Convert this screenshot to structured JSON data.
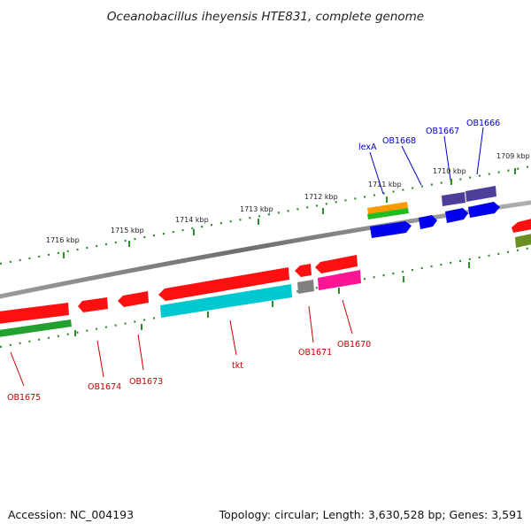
{
  "title": "Oceanobacillus iheyensis HTE831, complete genome",
  "footer": {
    "accession": "Accession: NC_004193",
    "summary": "Topology: circular; Length: 3,630,528 bp; Genes: 3,591"
  },
  "ruler": [
    {
      "label": "1716 kbp"
    },
    {
      "label": "1715 kbp"
    },
    {
      "label": "1714 kbp"
    },
    {
      "label": "1713 kbp"
    },
    {
      "label": "1712 kbp"
    },
    {
      "label": "1711 kbp"
    },
    {
      "label": "1710 kbp"
    },
    {
      "label": "1709 kbp"
    }
  ],
  "gene_labels_forward": [
    {
      "name": "lexA"
    },
    {
      "name": "OB1668"
    },
    {
      "name": "OB1667"
    },
    {
      "name": "OB1666"
    }
  ],
  "gene_labels_reverse": [
    {
      "name": "OB1675"
    },
    {
      "name": "OB1674"
    },
    {
      "name": "OB1673"
    },
    {
      "name": "tkt"
    },
    {
      "name": "OB1671"
    },
    {
      "name": "OB1670"
    }
  ],
  "colors": {
    "cds": "#ff0000",
    "highlight_cyan": "#00c8d0",
    "highlight_pink": "#ff1493",
    "gray_feature": "#808080",
    "green_feature": "#22bb22",
    "olive_feature": "#6b8e23",
    "orange_feature": "#ff9900",
    "blue_cds": "#0000ff",
    "purple_feature": "#4b3f9a",
    "backbone": "#888888",
    "ticks": "#2e8b2e"
  }
}
